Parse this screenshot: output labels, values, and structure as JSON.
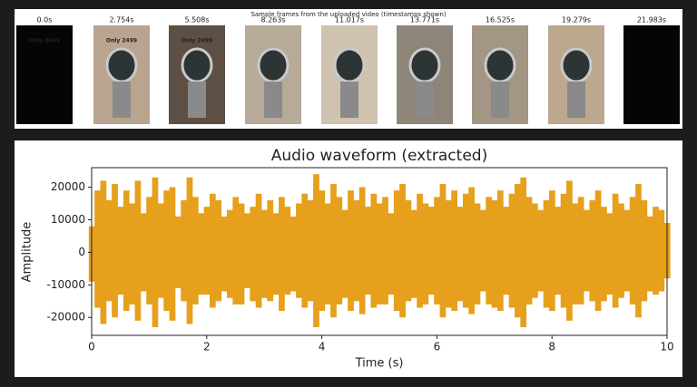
{
  "frames_panel": {
    "title": "Sample frames from the uploaded video (timestamps shown)",
    "frames": [
      {
        "label": "0.0s",
        "overlay": "Only 2499"
      },
      {
        "label": "2.754s",
        "overlay": "Only 2499"
      },
      {
        "label": "5.508s",
        "overlay": "Only 2499"
      },
      {
        "label": "8.263s"
      },
      {
        "label": "11.017s"
      },
      {
        "label": "13.771s"
      },
      {
        "label": "16.525s"
      },
      {
        "label": "19.279s"
      },
      {
        "label": "21.983s"
      }
    ]
  },
  "chart_data": {
    "type": "waveform",
    "title": "Audio waveform (extracted)",
    "x_label": "Time (s)",
    "y_label": "Amplitude",
    "x": [
      0,
      0.1,
      0.2,
      0.3,
      0.4,
      0.5,
      0.6,
      0.7,
      0.8,
      0.9,
      1,
      1.1,
      1.2,
      1.3,
      1.4,
      1.5,
      1.6,
      1.7,
      1.8,
      1.9,
      2,
      2.1,
      2.2,
      2.3,
      2.4,
      2.5,
      2.6,
      2.7,
      2.8,
      2.9,
      3,
      3.1,
      3.2,
      3.3,
      3.4,
      3.5,
      3.6,
      3.7,
      3.8,
      3.9,
      4,
      4.1,
      4.2,
      4.3,
      4.4,
      4.5,
      4.6,
      4.7,
      4.8,
      4.9,
      5,
      5.1,
      5.2,
      5.3,
      5.4,
      5.5,
      5.6,
      5.7,
      5.8,
      5.9,
      6,
      6.1,
      6.2,
      6.3,
      6.4,
      6.5,
      6.6,
      6.7,
      6.8,
      6.9,
      7,
      7.1,
      7.2,
      7.3,
      7.4,
      7.5,
      7.6,
      7.7,
      7.8,
      7.9,
      8,
      8.1,
      8.2,
      8.3,
      8.4,
      8.5,
      8.6,
      8.7,
      8.8,
      8.9,
      9,
      9.1,
      9.2,
      9.3,
      9.4,
      9.5,
      9.6,
      9.7,
      9.8,
      9.9,
      10
    ],
    "series": [
      {
        "color": "#e6a01c",
        "values": [
          8000,
          19000,
          22000,
          16000,
          21000,
          14000,
          19000,
          15000,
          22000,
          12000,
          17000,
          23000,
          15000,
          19000,
          20000,
          11000,
          16000,
          23000,
          17000,
          12000,
          14000,
          18000,
          16000,
          11000,
          13000,
          17000,
          15000,
          12000,
          14000,
          18000,
          13000,
          16000,
          12000,
          17000,
          14000,
          11000,
          15000,
          18000,
          16000,
          24000,
          19000,
          15000,
          21000,
          17000,
          13000,
          19000,
          16000,
          20000,
          14000,
          18000,
          15000,
          17000,
          12000,
          19000,
          21000,
          16000,
          13000,
          18000,
          15000,
          14000,
          17000,
          21000,
          16000,
          19000,
          14000,
          18000,
          20000,
          15000,
          13000,
          17000,
          16000,
          19000,
          14000,
          18000,
          21000,
          23000,
          17000,
          15000,
          13000,
          16000,
          19000,
          14000,
          18000,
          22000,
          15000,
          17000,
          13000,
          16000,
          19000,
          14000,
          12000,
          18000,
          15000,
          13000,
          17000,
          21000,
          16000,
          11000,
          14000,
          13000,
          9000
        ]
      },
      {
        "color": "#e6a01c",
        "values": [
          -9000,
          -17000,
          -22000,
          -15000,
          -20000,
          -13000,
          -18000,
          -16000,
          -21000,
          -12000,
          -16000,
          -23000,
          -14000,
          -18000,
          -21000,
          -11000,
          -15000,
          -22000,
          -16000,
          -13000,
          -13000,
          -17000,
          -15000,
          -12000,
          -14000,
          -16000,
          -16000,
          -11000,
          -15000,
          -17000,
          -14000,
          -15000,
          -13000,
          -18000,
          -13000,
          -12000,
          -14000,
          -17000,
          -15000,
          -23000,
          -18000,
          -16000,
          -20000,
          -16000,
          -14000,
          -18000,
          -15000,
          -19000,
          -13000,
          -17000,
          -16000,
          -16000,
          -13000,
          -18000,
          -20000,
          -15000,
          -14000,
          -17000,
          -16000,
          -13000,
          -16000,
          -20000,
          -17000,
          -18000,
          -15000,
          -17000,
          -19000,
          -16000,
          -12000,
          -16000,
          -17000,
          -18000,
          -13000,
          -17000,
          -20000,
          -23000,
          -16000,
          -14000,
          -12000,
          -17000,
          -18000,
          -13000,
          -17000,
          -21000,
          -16000,
          -16000,
          -12000,
          -15000,
          -18000,
          -15000,
          -13000,
          -17000,
          -14000,
          -12000,
          -16000,
          -20000,
          -15000,
          -12000,
          -13000,
          -12000,
          -8000
        ]
      }
    ],
    "xlim": [
      0,
      10
    ],
    "xticks": [
      0,
      2,
      4,
      6,
      8,
      10
    ],
    "ylim": [
      -25500,
      26000
    ],
    "yticks": [
      -20000,
      -10000,
      0,
      10000,
      20000
    ]
  }
}
